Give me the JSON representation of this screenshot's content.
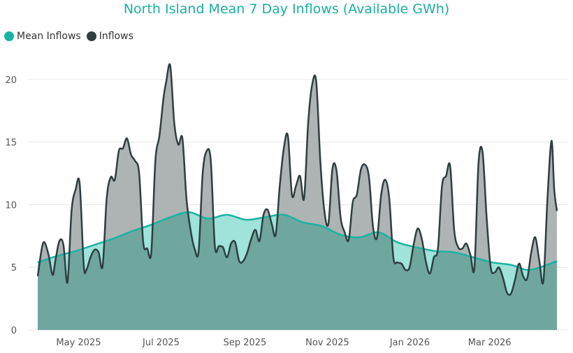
{
  "colors": {
    "mean_line": "#19b3a2",
    "mean_fill": "#9fe3da",
    "inflow_line": "#2f3e40",
    "inflow_fill": "#aeb3b4",
    "overlap_fill": "#6fa79e",
    "title": "#1ab0a0"
  },
  "chart_data": {
    "type": "area",
    "title": "North Island Mean 7 Day Inflows (Available GWh)",
    "xlabel": "",
    "ylabel": "",
    "ylim": [
      0,
      22
    ],
    "yticks": [
      0,
      5,
      10,
      15,
      20
    ],
    "grid": true,
    "legend_position": "top-left",
    "xticks": [
      {
        "label": "May 2025",
        "date": "2025-05-01"
      },
      {
        "label": "Jul 2025",
        "date": "2025-07-01"
      },
      {
        "label": "Sep 2025",
        "date": "2025-09-01"
      },
      {
        "label": "Nov 2025",
        "date": "2025-11-01"
      },
      {
        "label": "Jan 2026",
        "date": "2026-01-01"
      },
      {
        "label": "Mar 2026",
        "date": "2026-03-01"
      }
    ],
    "x_start": "2025-04-07",
    "x_end": "2026-04-26",
    "series": [
      {
        "name": "Mean Inflows",
        "points": [
          [
            "2025-04-07",
            5.4
          ],
          [
            "2025-04-21",
            5.9
          ],
          [
            "2025-05-05",
            6.3
          ],
          [
            "2025-05-19",
            6.8
          ],
          [
            "2025-06-02",
            7.3
          ],
          [
            "2025-06-16",
            7.9
          ],
          [
            "2025-06-30",
            8.4
          ],
          [
            "2025-07-14",
            9.0
          ],
          [
            "2025-07-28",
            9.4
          ],
          [
            "2025-08-11",
            8.9
          ],
          [
            "2025-08-25",
            9.2
          ],
          [
            "2025-09-08",
            8.8
          ],
          [
            "2025-09-22",
            9.0
          ],
          [
            "2025-10-06",
            9.2
          ],
          [
            "2025-10-20",
            8.6
          ],
          [
            "2025-11-03",
            8.3
          ],
          [
            "2025-11-17",
            7.6
          ],
          [
            "2025-12-01",
            7.4
          ],
          [
            "2025-12-15",
            7.8
          ],
          [
            "2025-12-29",
            7.0
          ],
          [
            "2026-01-12",
            6.6
          ],
          [
            "2026-01-26",
            6.3
          ],
          [
            "2026-02-09",
            6.2
          ],
          [
            "2026-02-23",
            5.8
          ],
          [
            "2026-03-09",
            5.4
          ],
          [
            "2026-03-23",
            5.2
          ],
          [
            "2026-04-06",
            4.8
          ],
          [
            "2026-04-26",
            5.5
          ]
        ]
      },
      {
        "name": "Inflows",
        "points": [
          [
            "2025-04-07",
            4.3
          ],
          [
            "2025-04-10",
            6.5
          ],
          [
            "2025-04-12",
            7.0
          ],
          [
            "2025-04-15",
            6.0
          ],
          [
            "2025-04-18",
            4.4
          ],
          [
            "2025-04-20",
            5.5
          ],
          [
            "2025-04-23",
            7.1
          ],
          [
            "2025-04-26",
            6.8
          ],
          [
            "2025-04-29",
            3.8
          ],
          [
            "2025-05-02",
            9.5
          ],
          [
            "2025-05-05",
            11.2
          ],
          [
            "2025-05-08",
            11.7
          ],
          [
            "2025-05-11",
            5.2
          ],
          [
            "2025-05-13",
            4.8
          ],
          [
            "2025-05-16",
            5.8
          ],
          [
            "2025-05-19",
            6.4
          ],
          [
            "2025-05-22",
            6.2
          ],
          [
            "2025-05-25",
            5.1
          ],
          [
            "2025-05-28",
            10.5
          ],
          [
            "2025-05-31",
            12.2
          ],
          [
            "2025-06-03",
            12.0
          ],
          [
            "2025-06-06",
            14.3
          ],
          [
            "2025-06-09",
            14.5
          ],
          [
            "2025-06-12",
            15.3
          ],
          [
            "2025-06-15",
            14.0
          ],
          [
            "2025-06-18",
            13.5
          ],
          [
            "2025-06-21",
            12.5
          ],
          [
            "2025-06-24",
            7.0
          ],
          [
            "2025-06-27",
            6.5
          ],
          [
            "2025-06-30",
            6.2
          ],
          [
            "2025-07-03",
            13.5
          ],
          [
            "2025-07-06",
            15.5
          ],
          [
            "2025-07-09",
            18.5
          ],
          [
            "2025-07-11",
            19.8
          ],
          [
            "2025-07-14",
            21.1
          ],
          [
            "2025-07-17",
            16.5
          ],
          [
            "2025-07-20",
            14.8
          ],
          [
            "2025-07-23",
            15.3
          ],
          [
            "2025-07-26",
            10.5
          ],
          [
            "2025-07-29",
            8.0
          ],
          [
            "2025-08-01",
            6.5
          ],
          [
            "2025-08-04",
            6.3
          ],
          [
            "2025-08-07",
            12.5
          ],
          [
            "2025-08-10",
            14.3
          ],
          [
            "2025-08-13",
            13.5
          ],
          [
            "2025-08-16",
            6.7
          ],
          [
            "2025-08-19",
            6.7
          ],
          [
            "2025-08-22",
            6.6
          ],
          [
            "2025-08-25",
            5.8
          ],
          [
            "2025-08-28",
            6.9
          ],
          [
            "2025-08-31",
            7.0
          ],
          [
            "2025-09-03",
            5.5
          ],
          [
            "2025-09-06",
            5.5
          ],
          [
            "2025-09-09",
            6.2
          ],
          [
            "2025-09-12",
            7.3
          ],
          [
            "2025-09-15",
            8.0
          ],
          [
            "2025-09-18",
            7.1
          ],
          [
            "2025-09-21",
            9.2
          ],
          [
            "2025-09-24",
            9.6
          ],
          [
            "2025-09-27",
            8.5
          ],
          [
            "2025-09-30",
            7.6
          ],
          [
            "2025-10-03",
            11.5
          ],
          [
            "2025-10-06",
            14.5
          ],
          [
            "2025-10-09",
            15.5
          ],
          [
            "2025-10-12",
            10.8
          ],
          [
            "2025-10-15",
            11.5
          ],
          [
            "2025-10-18",
            12.3
          ],
          [
            "2025-10-21",
            10.5
          ],
          [
            "2025-10-24",
            16.5
          ],
          [
            "2025-10-27",
            19.6
          ],
          [
            "2025-10-30",
            19.8
          ],
          [
            "2025-11-02",
            13.5
          ],
          [
            "2025-11-05",
            9.5
          ],
          [
            "2025-11-08",
            8.5
          ],
          [
            "2025-11-11",
            12.9
          ],
          [
            "2025-11-14",
            12.7
          ],
          [
            "2025-11-17",
            9.0
          ],
          [
            "2025-11-20",
            7.8
          ],
          [
            "2025-11-23",
            7.2
          ],
          [
            "2025-11-26",
            10.2
          ],
          [
            "2025-11-29",
            10.8
          ],
          [
            "2025-12-02",
            12.8
          ],
          [
            "2025-12-05",
            13.2
          ],
          [
            "2025-12-08",
            12.2
          ],
          [
            "2025-12-11",
            8.2
          ],
          [
            "2025-12-14",
            7.4
          ],
          [
            "2025-12-17",
            10.8
          ],
          [
            "2025-12-20",
            12.0
          ],
          [
            "2025-12-23",
            10.5
          ],
          [
            "2025-12-26",
            5.8
          ],
          [
            "2025-12-29",
            5.4
          ],
          [
            "2026-01-01",
            5.3
          ],
          [
            "2026-01-04",
            4.8
          ],
          [
            "2026-01-07",
            5.0
          ],
          [
            "2026-01-10",
            6.8
          ],
          [
            "2026-01-13",
            8.1
          ],
          [
            "2026-01-16",
            7.3
          ],
          [
            "2026-01-19",
            5.5
          ],
          [
            "2026-01-22",
            4.5
          ],
          [
            "2026-01-25",
            5.8
          ],
          [
            "2026-01-28",
            6.5
          ],
          [
            "2026-01-31",
            11.5
          ],
          [
            "2026-02-03",
            12.3
          ],
          [
            "2026-02-06",
            13.1
          ],
          [
            "2026-02-09",
            8.0
          ],
          [
            "2026-02-12",
            6.6
          ],
          [
            "2026-02-15",
            6.5
          ],
          [
            "2026-02-18",
            6.9
          ],
          [
            "2026-02-21",
            6.0
          ],
          [
            "2026-02-24",
            5.0
          ],
          [
            "2026-02-27",
            13.3
          ],
          [
            "2026-03-02",
            14.2
          ],
          [
            "2026-03-05",
            9.0
          ],
          [
            "2026-03-08",
            5.0
          ],
          [
            "2026-03-11",
            4.6
          ],
          [
            "2026-03-14",
            5.0
          ],
          [
            "2026-03-17",
            4.2
          ],
          [
            "2026-03-20",
            3.0
          ],
          [
            "2026-03-23",
            2.9
          ],
          [
            "2026-03-26",
            4.0
          ],
          [
            "2026-03-29",
            5.3
          ],
          [
            "2026-04-01",
            4.3
          ],
          [
            "2026-04-04",
            4.1
          ],
          [
            "2026-04-07",
            6.2
          ],
          [
            "2026-04-10",
            7.4
          ],
          [
            "2026-04-13",
            5.5
          ],
          [
            "2026-04-16",
            3.9
          ],
          [
            "2026-04-19",
            10.5
          ],
          [
            "2026-04-22",
            15.1
          ],
          [
            "2026-04-24",
            11.2
          ],
          [
            "2026-04-26",
            9.5
          ]
        ]
      }
    ]
  }
}
